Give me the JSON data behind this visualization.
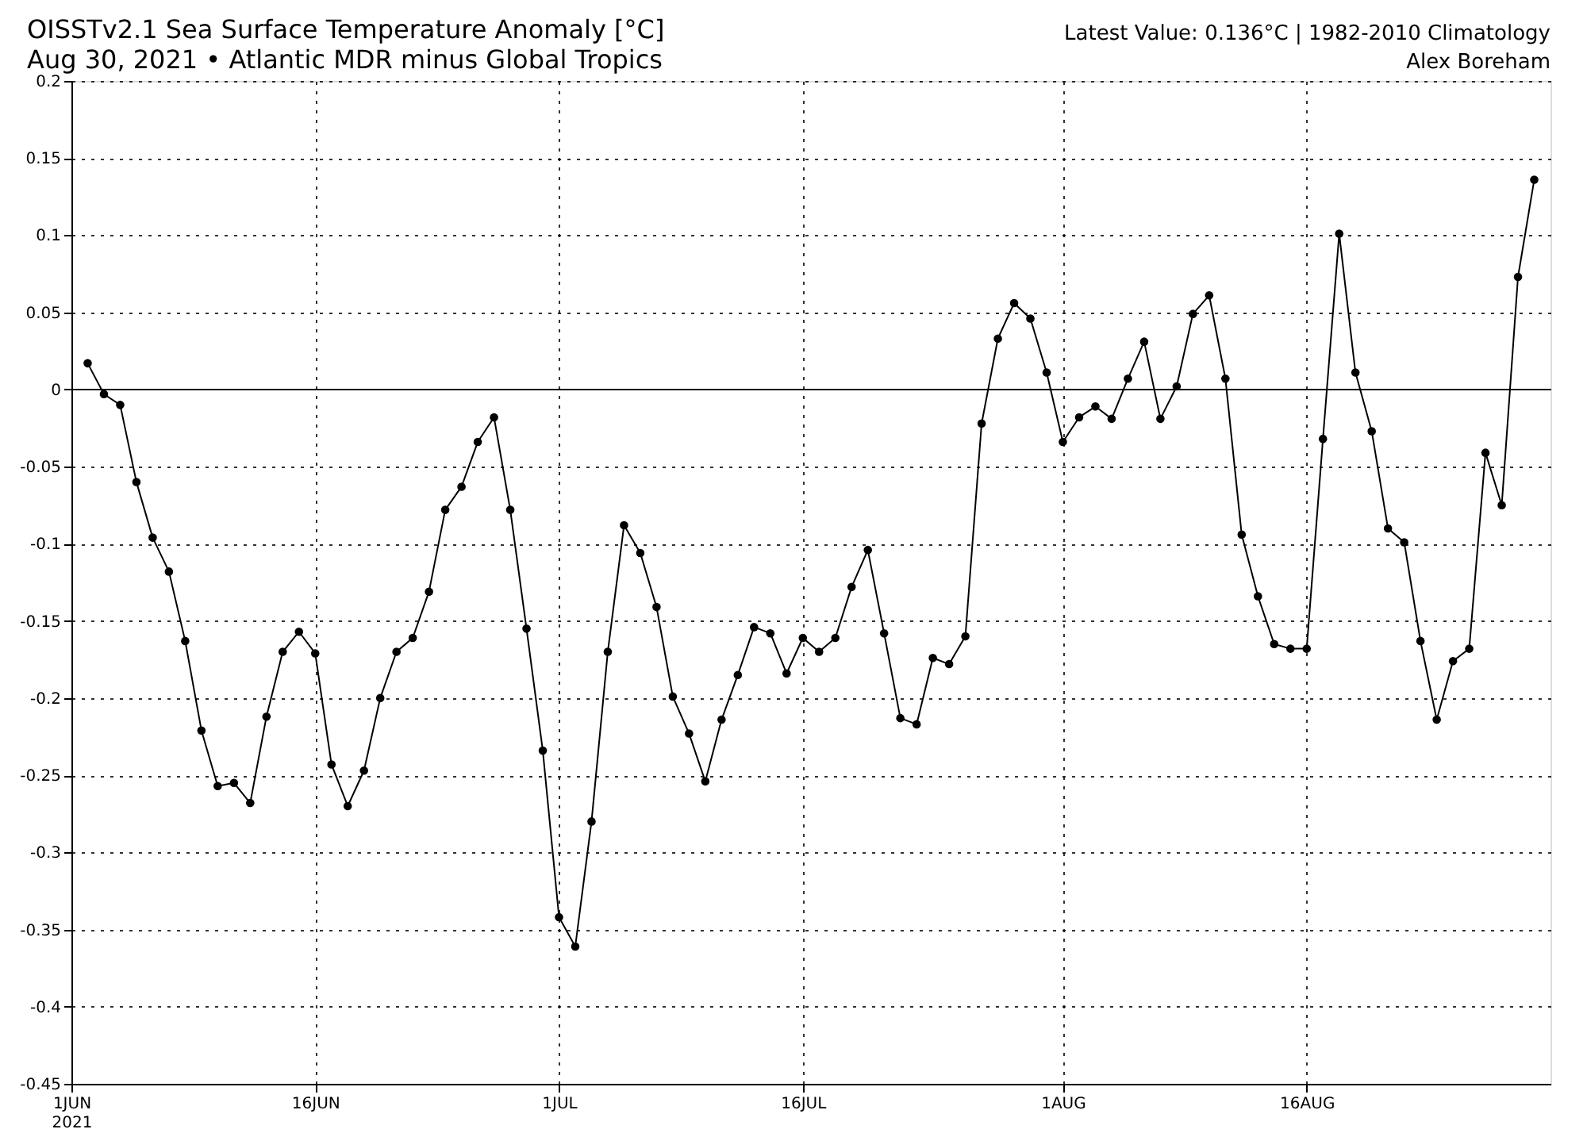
{
  "chart_data": {
    "type": "line",
    "title": "OISSTv2.1 Sea Surface Temperature Anomaly [°C]",
    "subtitle": "Aug 30, 2021 • Atlantic MDR minus Global Tropics",
    "annotations": [
      "Latest Value: 0.136°C | 1982-2010 Climatology",
      "Alex Boreham"
    ],
    "x": [
      "2021-06-02",
      "2021-06-03",
      "2021-06-04",
      "2021-06-05",
      "2021-06-06",
      "2021-06-07",
      "2021-06-08",
      "2021-06-09",
      "2021-06-10",
      "2021-06-11",
      "2021-06-12",
      "2021-06-13",
      "2021-06-14",
      "2021-06-15",
      "2021-06-16",
      "2021-06-17",
      "2021-06-18",
      "2021-06-19",
      "2021-06-20",
      "2021-06-21",
      "2021-06-22",
      "2021-06-23",
      "2021-06-24",
      "2021-06-25",
      "2021-06-26",
      "2021-06-27",
      "2021-06-28",
      "2021-06-29",
      "2021-06-30",
      "2021-07-01",
      "2021-07-02",
      "2021-07-03",
      "2021-07-04",
      "2021-07-05",
      "2021-07-06",
      "2021-07-07",
      "2021-07-08",
      "2021-07-09",
      "2021-07-10",
      "2021-07-11",
      "2021-07-12",
      "2021-07-13",
      "2021-07-14",
      "2021-07-15",
      "2021-07-16",
      "2021-07-17",
      "2021-07-18",
      "2021-07-19",
      "2021-07-20",
      "2021-07-21",
      "2021-07-22",
      "2021-07-23",
      "2021-07-24",
      "2021-07-25",
      "2021-07-26",
      "2021-07-27",
      "2021-07-28",
      "2021-07-29",
      "2021-07-30",
      "2021-07-31",
      "2021-08-01",
      "2021-08-02",
      "2021-08-03",
      "2021-08-04",
      "2021-08-05",
      "2021-08-06",
      "2021-08-07",
      "2021-08-08",
      "2021-08-09",
      "2021-08-10",
      "2021-08-11",
      "2021-08-12",
      "2021-08-13",
      "2021-08-14",
      "2021-08-15",
      "2021-08-16",
      "2021-08-17",
      "2021-08-18",
      "2021-08-19",
      "2021-08-20",
      "2021-08-21",
      "2021-08-22",
      "2021-08-23",
      "2021-08-24",
      "2021-08-25",
      "2021-08-26",
      "2021-08-27",
      "2021-08-28",
      "2021-08-29",
      "2021-08-30"
    ],
    "series": [
      {
        "color": "#000000",
        "values": [
          0.017,
          -0.003,
          -0.01,
          -0.06,
          -0.096,
          -0.118,
          -0.163,
          -0.221,
          -0.257,
          -0.255,
          -0.268,
          -0.212,
          -0.17,
          -0.157,
          -0.171,
          -0.243,
          -0.27,
          -0.247,
          -0.2,
          -0.17,
          -0.161,
          -0.131,
          -0.078,
          -0.063,
          -0.034,
          -0.018,
          -0.078,
          -0.155,
          -0.234,
          -0.342,
          -0.361,
          -0.28,
          -0.17,
          -0.088,
          -0.106,
          -0.141,
          -0.199,
          -0.223,
          -0.254,
          -0.214,
          -0.185,
          -0.154,
          -0.158,
          -0.184,
          -0.161,
          -0.17,
          -0.161,
          -0.128,
          -0.104,
          -0.158,
          -0.213,
          -0.217,
          -0.174,
          -0.178,
          -0.16,
          -0.022,
          0.033,
          0.056,
          0.046,
          0.011,
          -0.034,
          -0.018,
          -0.011,
          -0.019,
          0.007,
          0.031,
          -0.019,
          0.002,
          0.049,
          0.061,
          0.007,
          -0.094,
          -0.134,
          -0.165,
          -0.168,
          -0.168,
          -0.032,
          0.101,
          0.011,
          -0.027,
          -0.09,
          -0.099,
          -0.163,
          -0.214,
          -0.176,
          -0.168,
          -0.041,
          -0.075,
          0.073,
          0.136
        ]
      }
    ],
    "xlim": [
      "2021-06-01",
      "2021-08-31"
    ],
    "xticks": [
      {
        "value": "2021-06-01",
        "label": "1JUN\n2021"
      },
      {
        "value": "2021-06-16",
        "label": "16JUN"
      },
      {
        "value": "2021-07-01",
        "label": "1JUL"
      },
      {
        "value": "2021-07-16",
        "label": "16JUL"
      },
      {
        "value": "2021-08-01",
        "label": "1AUG"
      },
      {
        "value": "2021-08-16",
        "label": "16AUG"
      }
    ],
    "ylim": [
      -0.45,
      0.2
    ],
    "yticks": [
      -0.45,
      -0.4,
      -0.35,
      -0.3,
      -0.25,
      -0.2,
      -0.15,
      -0.1,
      -0.05,
      0,
      0.05,
      0.1,
      0.15,
      0.2
    ],
    "ref_lines": [
      {
        "axis": "y",
        "value": 0,
        "color": "#000000",
        "line_style": "solid"
      }
    ],
    "grid": true,
    "marker": "circle",
    "line_style": "solid"
  }
}
